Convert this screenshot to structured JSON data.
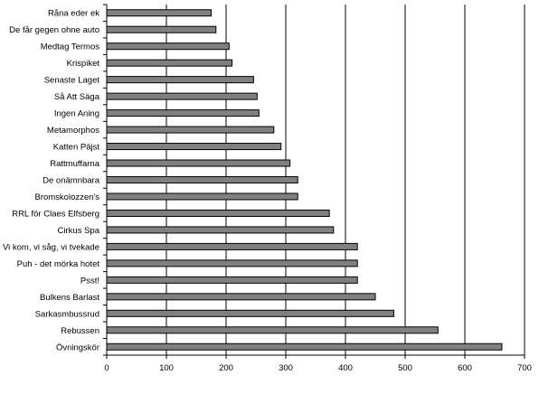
{
  "chart_data": {
    "type": "bar",
    "orientation": "horizontal",
    "title": "",
    "xlabel": "",
    "ylabel": "",
    "xlim": [
      0,
      700
    ],
    "x_ticks": [
      0,
      100,
      200,
      300,
      400,
      500,
      600,
      700
    ],
    "grid": "vertical major gridlines",
    "legend": "none",
    "bar_color": "#808080",
    "bar_edge_color": "#000000",
    "categories": [
      "Råna eder ek",
      "De får gegen ohne auto",
      "Medtag Termos",
      "Krispiket",
      "Senaste Laget",
      "Så Att Säga",
      "Ingen Aning",
      "Metamorphos",
      "Katten Päjst",
      "Rattmuffarna",
      "De onämnbara",
      "Bromskolozzen's",
      "RRL för Claes Elfsberg",
      "Cirkus Spa",
      "Vi kom, vi såg, vi tvekade",
      "Puh - det mörka hotet",
      "Psst!",
      "Bulkens Barlast",
      "Sarkasmbussrud",
      "Rebussen",
      "Övningskör"
    ],
    "values": [
      175,
      183,
      205,
      210,
      246,
      252,
      255,
      280,
      292,
      307,
      320,
      320,
      373,
      380,
      420,
      420,
      420,
      450,
      481,
      555,
      662
    ]
  }
}
